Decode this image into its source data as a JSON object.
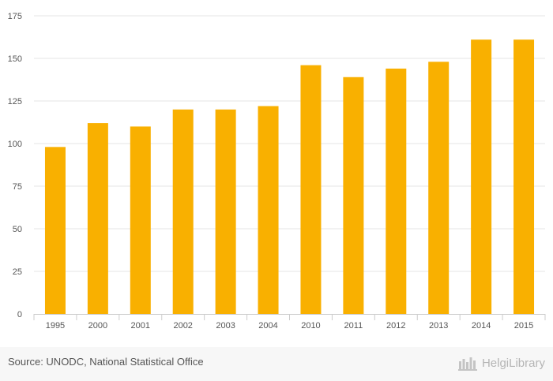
{
  "chart_data": {
    "type": "bar",
    "categories": [
      "1995",
      "2000",
      "2001",
      "2002",
      "2003",
      "2004",
      "2010",
      "2011",
      "2012",
      "2013",
      "2014",
      "2015"
    ],
    "values": [
      98,
      112,
      110,
      120,
      120,
      122,
      146,
      139,
      144,
      148,
      161,
      161
    ],
    "ylim": [
      0,
      175
    ],
    "yticks": [
      0,
      25,
      50,
      75,
      100,
      125,
      150,
      175
    ],
    "grid": true,
    "bar_color": "#f9b000"
  },
  "footer": {
    "source": "Source: UNODC, National Statistical Office",
    "brand_name": "HelgiLibrary",
    "brand_icon": "helgi-library-logo-icon"
  }
}
